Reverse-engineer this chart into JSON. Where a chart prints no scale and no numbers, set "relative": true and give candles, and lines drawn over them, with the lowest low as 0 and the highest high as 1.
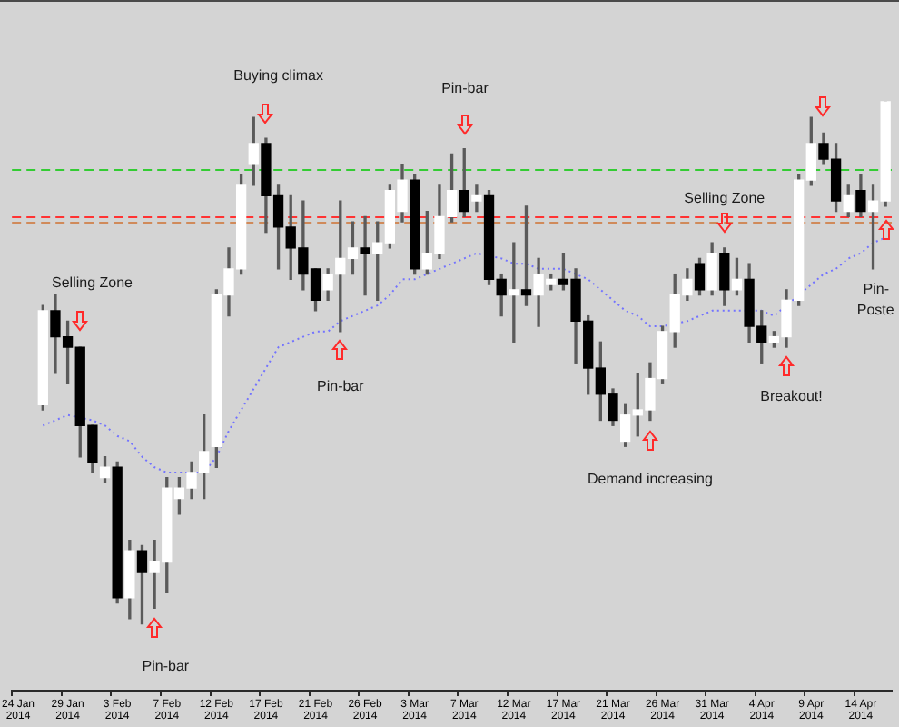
{
  "chart_data": {
    "type": "candlestick",
    "relative": true,
    "categories": [
      "24 Jan 2014",
      null,
      null,
      null,
      "29 Jan 2014",
      null,
      null,
      null,
      "3 Feb 2014",
      null,
      null,
      null,
      "7 Feb 2014",
      null,
      null,
      null,
      "12 Feb 2014",
      null,
      null,
      null,
      "17 Feb 2014",
      null,
      null,
      null,
      "21 Feb 2014",
      null,
      null,
      null,
      "26 Feb 2014",
      null,
      null,
      null,
      "3 Mar 2014",
      null,
      null,
      null,
      "7 Mar 2014",
      null,
      null,
      null,
      "12 Mar 2014",
      null,
      null,
      null,
      "17 Mar 2014",
      null,
      null,
      null,
      "21 Mar 2014",
      null,
      null,
      null,
      "26 Mar 2014",
      null,
      null,
      null,
      "31 Mar 2014",
      null,
      null,
      null,
      "4 Apr 2014",
      null,
      null,
      null,
      "9 Apr 2014",
      null,
      null,
      null,
      "14 Apr 2014",
      null,
      null
    ],
    "ohlc": [
      null,
      null,
      [
        0.42,
        0.61,
        0.41,
        0.6
      ],
      [
        0.6,
        0.63,
        0.48,
        0.55
      ],
      [
        0.55,
        0.58,
        0.46,
        0.53
      ],
      [
        0.53,
        0.53,
        0.32,
        0.38
      ],
      [
        0.38,
        0.38,
        0.29,
        0.31
      ],
      [
        0.28,
        0.32,
        0.27,
        0.3
      ],
      [
        0.3,
        0.31,
        0.04,
        0.05
      ],
      [
        0.05,
        0.16,
        0.01,
        0.14
      ],
      [
        0.14,
        0.15,
        0,
        0.1
      ],
      [
        0.1,
        0.16,
        0.03,
        0.12
      ],
      [
        0.12,
        0.28,
        0.06,
        0.26
      ],
      [
        0.24,
        0.28,
        0.21,
        0.26
      ],
      [
        0.26,
        0.31,
        0.24,
        0.29
      ],
      [
        0.29,
        0.4,
        0.24,
        0.33
      ],
      [
        0.34,
        0.64,
        0.3,
        0.63
      ],
      [
        0.63,
        0.72,
        0.59,
        0.68
      ],
      [
        0.68,
        0.86,
        0.67,
        0.84
      ],
      [
        0.88,
        0.97,
        0.84,
        0.92
      ],
      [
        0.92,
        0.93,
        0.75,
        0.82
      ],
      [
        0.82,
        0.84,
        0.68,
        0.76
      ],
      [
        0.76,
        0.82,
        0.66,
        0.72
      ],
      [
        0.72,
        0.81,
        0.64,
        0.67
      ],
      [
        0.68,
        0.68,
        0.6,
        0.62
      ],
      [
        0.64,
        0.68,
        0.62,
        0.67
      ],
      [
        0.67,
        0.81,
        0.56,
        0.7
      ],
      [
        0.7,
        0.77,
        0.67,
        0.72
      ],
      [
        0.72,
        0.78,
        0.63,
        0.71
      ],
      [
        0.71,
        0.77,
        0.62,
        0.73
      ],
      [
        0.73,
        0.84,
        0.72,
        0.83
      ],
      [
        0.79,
        0.88,
        0.77,
        0.85
      ],
      [
        0.85,
        0.86,
        0.67,
        0.68
      ],
      [
        0.68,
        0.79,
        0.67,
        0.71
      ],
      [
        0.71,
        0.84,
        0.7,
        0.78
      ],
      [
        0.78,
        0.9,
        0.77,
        0.83
      ],
      [
        0.83,
        0.91,
        0.78,
        0.79
      ],
      [
        0.81,
        0.84,
        0.79,
        0.82
      ],
      [
        0.82,
        0.83,
        0.65,
        0.66
      ],
      [
        0.66,
        0.67,
        0.59,
        0.63
      ],
      [
        0.63,
        0.73,
        0.54,
        0.64
      ],
      [
        0.64,
        0.8,
        0.61,
        0.63
      ],
      [
        0.63,
        0.7,
        0.57,
        0.67
      ],
      [
        0.65,
        0.67,
        0.64,
        0.66
      ],
      [
        0.66,
        0.71,
        0.64,
        0.65
      ],
      [
        0.66,
        0.68,
        0.5,
        0.58
      ],
      [
        0.58,
        0.59,
        0.44,
        0.49
      ],
      [
        0.49,
        0.54,
        0.39,
        0.44
      ],
      [
        0.44,
        0.45,
        0.38,
        0.39
      ],
      [
        0.35,
        0.42,
        0.34,
        0.4
      ],
      [
        0.4,
        0.48,
        0.36,
        0.41
      ],
      [
        0.41,
        0.5,
        0.39,
        0.47
      ],
      [
        0.47,
        0.57,
        0.46,
        0.56
      ],
      [
        0.56,
        0.67,
        0.53,
        0.63
      ],
      [
        0.63,
        0.68,
        0.62,
        0.66
      ],
      [
        0.69,
        0.7,
        0.63,
        0.64
      ],
      [
        0.64,
        0.73,
        0.63,
        0.71
      ],
      [
        0.71,
        0.72,
        0.61,
        0.64
      ],
      [
        0.64,
        0.7,
        0.63,
        0.66
      ],
      [
        0.66,
        0.69,
        0.54,
        0.57
      ],
      [
        0.57,
        0.6,
        0.5,
        0.54
      ],
      [
        0.54,
        0.56,
        0.53,
        0.55
      ],
      [
        0.55,
        0.64,
        0.53,
        0.62
      ],
      [
        0.62,
        0.86,
        0.61,
        0.85
      ],
      [
        0.85,
        0.97,
        0.84,
        0.92
      ],
      [
        0.92,
        0.94,
        0.88,
        0.89
      ],
      [
        0.89,
        0.92,
        0.79,
        0.81
      ],
      [
        0.79,
        0.84,
        0.78,
        0.82
      ],
      [
        0.83,
        0.86,
        0.78,
        0.79
      ],
      [
        0.79,
        0.84,
        0.68,
        0.81
      ],
      [
        0.81,
        1,
        0.8,
        1
      ]
    ],
    "colors": [
      null,
      null,
      "#ffffff",
      "#000000",
      "#000000",
      "#000000",
      "#000000",
      "#ffffff",
      "#000000",
      "#ffffff",
      "#000000",
      "#ffffff",
      "#ffffff",
      "#ffffff",
      "#ffffff",
      "#ffffff",
      "#ffffff",
      "#ffffff",
      "#ffffff",
      "#ffffff",
      "#000000",
      "#000000",
      "#000000",
      "#000000",
      "#000000",
      "#ffffff",
      "#ffffff",
      "#ffffff",
      "#000000",
      "#ffffff",
      "#ffffff",
      "#ffffff",
      "#000000",
      "#ffffff",
      "#ffffff",
      "#ffffff",
      "#000000",
      "#ffffff",
      "#000000",
      "#000000",
      "#ffffff",
      "#000000",
      "#ffffff",
      "#ffffff",
      "#000000",
      "#000000",
      "#000000",
      "#000000",
      "#000000",
      "#ffffff",
      "#ffffff",
      "#ffffff",
      "#ffffff",
      "#ffffff",
      "#ffffff",
      "#000000",
      "#ffffff",
      "#000000",
      "#ffffff",
      "#000000",
      "#000000",
      "#ffffff",
      "#ffffff",
      "#ffffff",
      "#ffffff",
      "#000000",
      "#000000",
      "#ffffff",
      "#000000",
      "#ffffff",
      "#ffffff"
    ],
    "series": [
      {
        "type": "line",
        "color": "#7373ff",
        "values": [
          null,
          null,
          0.38,
          0.39,
          0.4,
          null,
          0.39,
          0.38,
          0.36,
          0.35,
          0.32,
          0.3,
          0.29,
          0.29,
          0.29,
          0.29,
          0.32,
          0.37,
          0.41,
          0.45,
          0.49,
          0.53,
          0.54,
          0.55,
          0.56,
          0.56,
          0.58,
          0.59,
          0.6,
          0.61,
          0.63,
          0.66,
          0.66,
          0.67,
          0.68,
          0.69,
          0.7,
          0.71,
          null,
          0.7,
          0.69,
          0.69,
          0.68,
          0.68,
          0.68,
          0.67,
          0.66,
          0.64,
          0.62,
          0.6,
          0.59,
          0.57,
          0.57,
          null,
          0.58,
          0.59,
          0.6,
          0.6,
          0.6,
          null,
          0.6,
          0.59,
          null,
          null,
          0.65,
          0.67,
          0.68,
          0.7,
          0.71,
          0.73,
          0.74
        ]
      }
    ],
    "line_style": "dotted",
    "ref_lines": [
      {
        "axis": "y",
        "value": 0.87,
        "color": "#33cc33",
        "line_style": "dashed"
      },
      {
        "axis": "y",
        "value": 0.78,
        "color": "#ff3333",
        "line_style": "dashed"
      },
      {
        "axis": "y",
        "value": 0.77,
        "color": "#d08a5a",
        "line_style": "dashed"
      }
    ],
    "annotations": [
      "Selling Zone",
      "Pin-bar",
      "Buying climax",
      "Pin-bar",
      "Pin-bar",
      "Demand increasing",
      "Selling Zone",
      "Breakout!",
      "Pin-",
      "Poste"
    ],
    "grid": false,
    "legend": false
  }
}
